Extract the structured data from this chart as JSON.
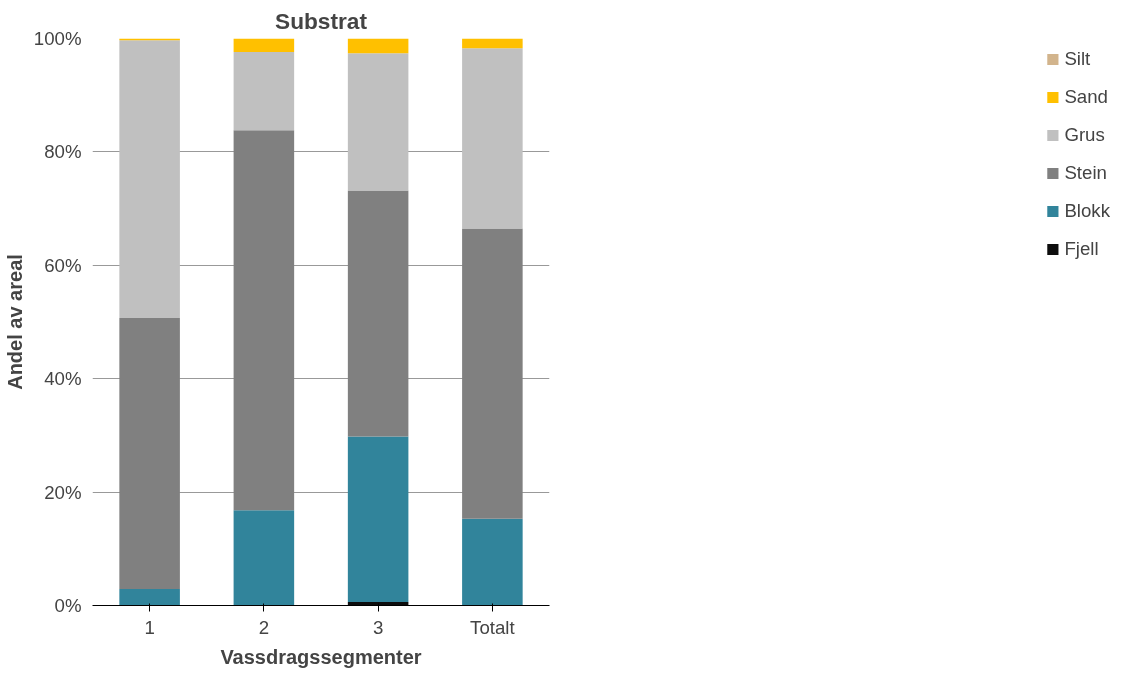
{
  "chart_data": {
    "type": "bar",
    "title": "Substrat",
    "xlabel": "Vassdragssegmenter",
    "ylabel": "Andel av areal",
    "categories": [
      "1",
      "2",
      "3",
      "Totalt"
    ],
    "stacked": true,
    "series": [
      {
        "name": "Fjell",
        "color": "#0d0d0d",
        "values": [
          0,
          0,
          0.6,
          0
        ]
      },
      {
        "name": "Blokk",
        "color": "#31849b",
        "values": [
          2.9,
          16.8,
          29.2,
          15.3
        ]
      },
      {
        "name": "Stein",
        "color": "#808080",
        "values": [
          47.8,
          67.0,
          43.4,
          51.2
        ]
      },
      {
        "name": "Grus",
        "color": "#c0c0c0",
        "values": [
          49.0,
          13.8,
          24.2,
          31.8
        ]
      },
      {
        "name": "Sand",
        "color": "#ffc000",
        "values": [
          0.3,
          2.4,
          2.6,
          1.7
        ]
      },
      {
        "name": "Silt",
        "color": "#d2b48c",
        "values": [
          0,
          0,
          0,
          0
        ]
      }
    ],
    "ylim": [
      0,
      100
    ],
    "yticks": [
      {
        "value": 0,
        "label": "0%"
      },
      {
        "value": 20,
        "label": "20%"
      },
      {
        "value": 40,
        "label": "40%"
      },
      {
        "value": 60,
        "label": "60%"
      },
      {
        "value": 80,
        "label": "80%"
      },
      {
        "value": 100,
        "label": "100%"
      }
    ],
    "grid": "y",
    "legend": "right"
  }
}
